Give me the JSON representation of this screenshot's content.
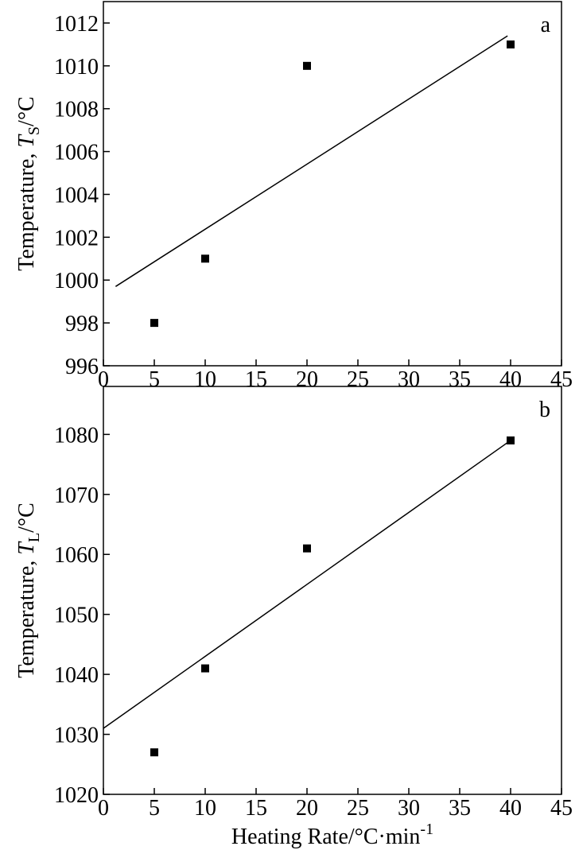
{
  "chart_data": [
    {
      "type": "scatter",
      "panel_label": "a",
      "y_label": {
        "text": "Temperature, ",
        "symbol": "T",
        "subscript": "S",
        "unit": "/°C"
      },
      "x": [
        5,
        10,
        20,
        40
      ],
      "values": [
        998,
        1001,
        1010,
        1011
      ],
      "color": "#000000",
      "fit_line": {
        "x": [
          1.2,
          39.7
        ],
        "y": [
          999.7,
          1011.4
        ]
      },
      "xlim": [
        0,
        45
      ],
      "xticks": [
        0,
        5,
        10,
        15,
        20,
        25,
        30,
        35,
        40,
        45
      ],
      "ylim": [
        996,
        1013
      ],
      "yticks": [
        996,
        998,
        1000,
        1002,
        1004,
        1006,
        1008,
        1010,
        1012
      ]
    },
    {
      "type": "scatter",
      "panel_label": "b",
      "y_label": {
        "text": "Temperature, ",
        "symbol": "T",
        "subscript": "L",
        "unit": "/°C"
      },
      "x_label": {
        "text": "Heating Rate/°C·min",
        "superscript": "-1"
      },
      "x": [
        5,
        10,
        20,
        40
      ],
      "values": [
        1027,
        1041,
        1061,
        1079
      ],
      "color": "#000000",
      "fit_line": {
        "x": [
          0,
          40
        ],
        "y": [
          1031,
          1079
        ]
      },
      "xlim": [
        0,
        45
      ],
      "xticks": [
        0,
        5,
        10,
        15,
        20,
        25,
        30,
        35,
        40,
        45
      ],
      "ylim": [
        1020,
        1088
      ],
      "yticks": [
        1020,
        1030,
        1040,
        1050,
        1060,
        1070,
        1080
      ]
    }
  ]
}
